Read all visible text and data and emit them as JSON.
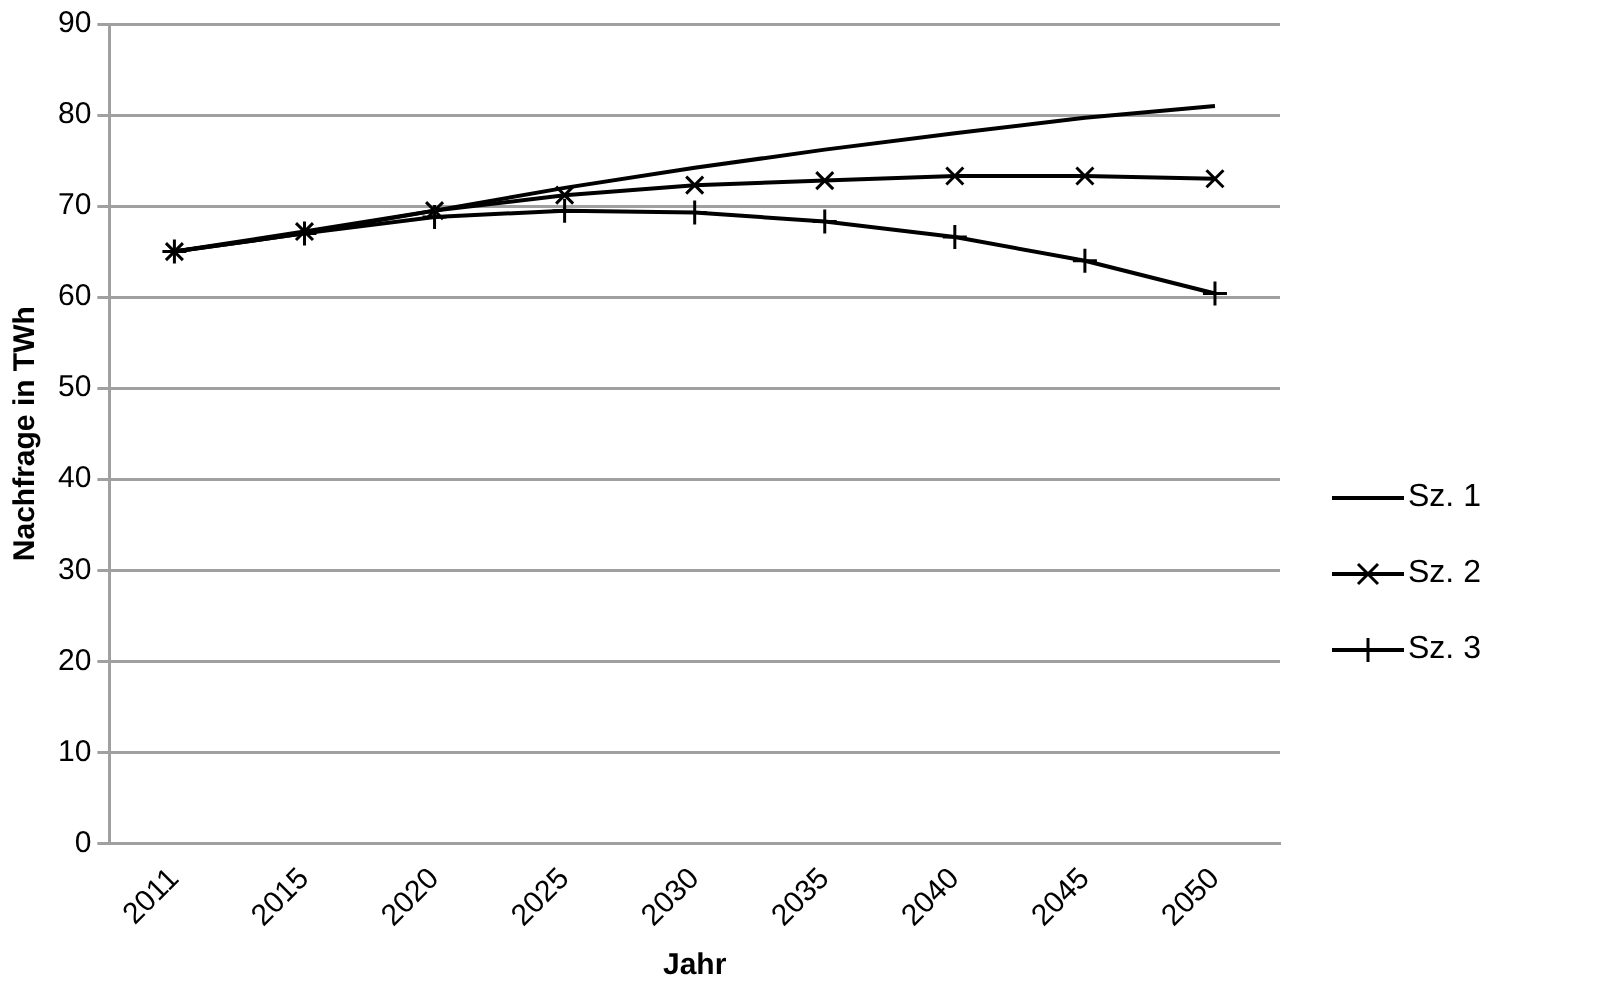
{
  "chart_data": {
    "type": "line",
    "xlabel": "Jahr",
    "ylabel": "Nachfrage in TWh",
    "categories": [
      "2011",
      "2015",
      "2020",
      "2025",
      "2030",
      "2035",
      "2040",
      "2045",
      "2050"
    ],
    "series": [
      {
        "name": "Sz. 1",
        "color": "#000000",
        "marker": "none",
        "values": [
          65,
          67,
          69.5,
          72,
          74.2,
          76.2,
          78,
          79.7,
          81
        ]
      },
      {
        "name": "Sz. 2",
        "color": "#000000",
        "marker": "cross",
        "values": [
          65,
          67.2,
          69.5,
          71.2,
          72.3,
          72.8,
          73.3,
          73.3,
          73
        ]
      },
      {
        "name": "Sz. 3",
        "color": "#000000",
        "marker": "plus",
        "values": [
          65,
          67,
          68.8,
          69.5,
          69.3,
          68.3,
          66.6,
          64,
          60.4
        ]
      }
    ],
    "ylim": [
      0,
      90
    ],
    "yticks": [
      0,
      10,
      20,
      30,
      40,
      50,
      60,
      70,
      80,
      90
    ],
    "grid": "y",
    "legend": "right",
    "line_style": "solid"
  }
}
